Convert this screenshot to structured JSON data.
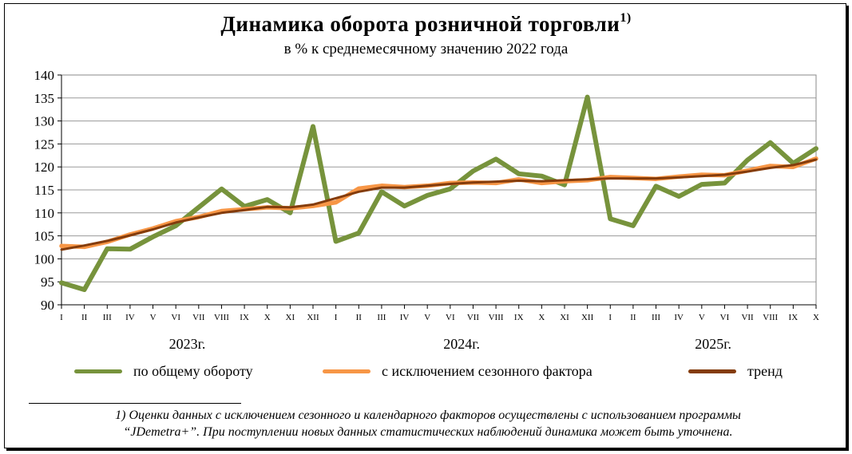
{
  "title": "Динамика оборота розничной торговли",
  "title_note_mark": "1)",
  "subtitle": "в % к среднемесячному значению 2022  года",
  "legend": {
    "total": "по общему  обороту",
    "seasonal": "с исключением  сезонного фактора",
    "trend": "тренд"
  },
  "colors": {
    "total": "#77933C",
    "seasonal": "#F79646",
    "trend": "#843C0C"
  },
  "footnote": {
    "line1": "1) Оценки данных с исключением сезонного и календарного факторов осуществлены с использованием программы",
    "line2": "“JDemetra+”. При поступлении новых данных статистических наблюдений динамика может быть уточнена."
  },
  "chart_data": {
    "type": "line",
    "title": "Динамика оборота розничной торговли",
    "subtitle": "в % к среднемесячному значению 2022  года",
    "ylim": [
      90,
      140
    ],
    "yticks": [
      90,
      95,
      100,
      105,
      110,
      115,
      120,
      125,
      130,
      135,
      140
    ],
    "grid": true,
    "legend_position": "bottom",
    "categories": [
      "I",
      "II",
      "III",
      "IV",
      "V",
      "VI",
      "VII",
      "VIII",
      "IX",
      "X",
      "XI",
      "XII",
      "I",
      "II",
      "III",
      "IV",
      "V",
      "VI",
      "VII",
      "VIII",
      "IX",
      "X",
      "XI",
      "XII",
      "I",
      "II",
      "III",
      "IV",
      "V",
      "VI",
      "VII",
      "VIII",
      "IX",
      "X"
    ],
    "year_labels": [
      "2023г.",
      "2024г.",
      "2025г."
    ],
    "series": [
      {
        "name": "по общему  обороту",
        "key": "total",
        "values": [
          94.8,
          93.3,
          102.2,
          102.1,
          104.8,
          107.2,
          111.2,
          115.2,
          111.4,
          112.9,
          110.0,
          128.8,
          103.8,
          105.6,
          114.6,
          111.5,
          113.8,
          115.2,
          119.1,
          121.7,
          118.5,
          118.0,
          116.1,
          135.2,
          108.7,
          107.2,
          115.8,
          113.6,
          116.2,
          116.5,
          121.5,
          125.3,
          120.8,
          124.0
        ]
      },
      {
        "name": "с исключением  сезонного фактора",
        "key": "seasonal",
        "values": [
          102.8,
          102.6,
          103.7,
          105.3,
          106.6,
          108.2,
          109.1,
          110.4,
          110.8,
          111.2,
          111.0,
          111.5,
          112.3,
          115.3,
          115.9,
          115.6,
          115.9,
          116.5,
          116.6,
          116.5,
          117.3,
          116.5,
          116.9,
          117.1,
          117.8,
          117.6,
          117.4,
          117.9,
          118.3,
          118.2,
          119.2,
          120.2,
          120.0,
          121.8
        ]
      },
      {
        "name": "тренд",
        "key": "trend",
        "values": [
          102.0,
          102.9,
          103.9,
          105.1,
          106.4,
          107.9,
          109.0,
          110.0,
          110.6,
          111.3,
          111.2,
          111.8,
          113.2,
          114.6,
          115.5,
          115.5,
          115.9,
          116.3,
          116.6,
          116.8,
          117.0,
          116.9,
          117.1,
          117.3,
          117.5,
          117.5,
          117.5,
          117.7,
          118.0,
          118.3,
          119.0,
          119.8,
          120.4,
          121.6
        ]
      }
    ]
  }
}
